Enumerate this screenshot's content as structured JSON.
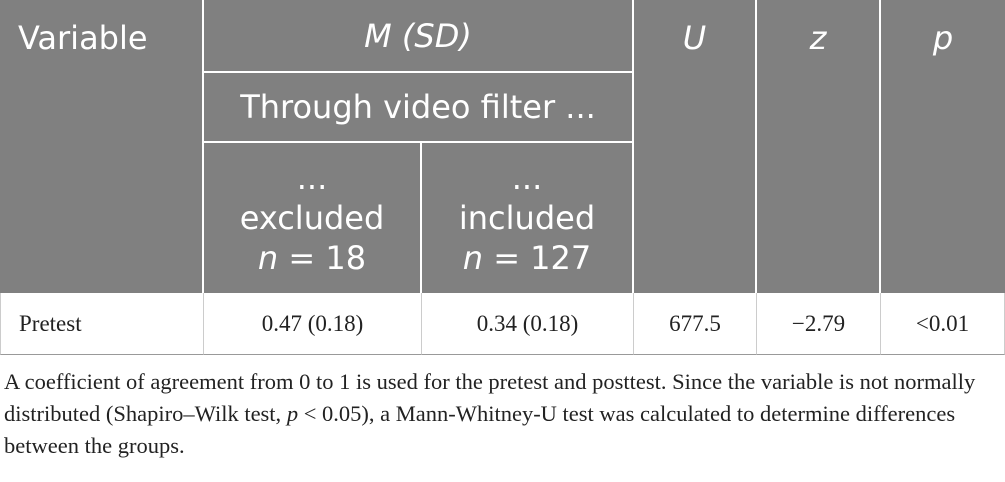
{
  "table": {
    "header": {
      "variable": "Variable",
      "msd": "M (SD)",
      "u": "U",
      "z": "z",
      "p": "p",
      "subheader": "Through video filter ...",
      "groups": [
        {
          "ellipsis": "...",
          "label": "excluded",
          "n_symbol": "n",
          "n_value": "= 18"
        },
        {
          "ellipsis": "...",
          "label": "included",
          "n_symbol": "n",
          "n_value": "= 127"
        }
      ]
    },
    "rows": [
      [
        "Pretest",
        "0.47 (0.18)",
        "0.34 (0.18)",
        "677.5",
        "−2.79",
        "<0.01"
      ]
    ]
  },
  "note": {
    "parts": [
      "A coefficient of agreement from 0 to 1 is used for the pretest and posttest. Since the variable is not normally distributed (Shapiro–Wilk test, ",
      "p",
      " < 0.05), a Mann-Whitney-U test was calculated to determine differences between the groups."
    ]
  }
}
